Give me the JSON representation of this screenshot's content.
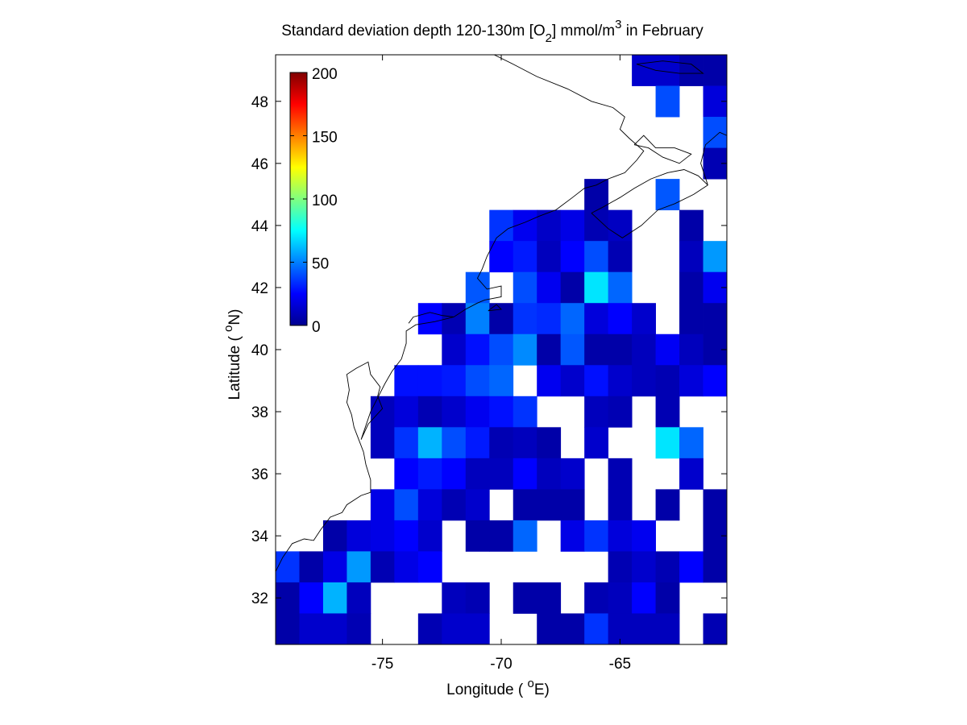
{
  "chart_data": {
    "type": "heatmap",
    "title": {
      "pre": "Standard deviation depth 120-130m [O",
      "sub": "2",
      "mid": "] mmol/m",
      "sup": "3",
      "post": " in February"
    },
    "xlabel": {
      "pre": "Longitude ( ",
      "sup": "o",
      "post": "E)"
    },
    "ylabel": {
      "pre": "Latitude ( ",
      "sup": "o",
      "post": "N)"
    },
    "xlim": [
      -79.5,
      -60.5
    ],
    "ylim": [
      30.5,
      49.5
    ],
    "xticks": [
      -75,
      -70,
      -65
    ],
    "xtick_labels": [
      "-75",
      "-70",
      "-65"
    ],
    "yticks": [
      32,
      34,
      36,
      38,
      40,
      42,
      44,
      46,
      48
    ],
    "ytick_labels": [
      "32",
      "34",
      "36",
      "38",
      "40",
      "42",
      "44",
      "46",
      "48"
    ],
    "grid": false,
    "colormap": "jet",
    "clim": [
      0,
      200
    ],
    "colorbar_ticks": [
      0,
      50,
      100,
      150,
      200
    ],
    "colorbar_tick_labels": [
      "0",
      "50",
      "100",
      "150",
      "200"
    ],
    "colorbar_location": "top-left inside",
    "coastline_color": "#000000",
    "cell_size_deg": 1,
    "x_centers": [
      -79,
      -78,
      -77,
      -76,
      -75,
      -74,
      -73,
      -72,
      -71,
      -70,
      -69,
      -68,
      -67,
      -66,
      -65,
      -64,
      -63,
      -62,
      -61
    ],
    "y_centers": [
      49,
      48,
      47,
      46,
      45,
      44,
      43,
      42,
      41,
      40,
      39,
      38,
      37,
      36,
      35,
      34,
      33,
      32,
      31
    ],
    "grid_values_rows_north_to_south": [
      [
        null,
        null,
        null,
        null,
        null,
        null,
        null,
        null,
        null,
        null,
        null,
        null,
        null,
        null,
        null,
        15,
        15,
        8,
        8
      ],
      [
        null,
        null,
        null,
        null,
        null,
        null,
        null,
        null,
        null,
        null,
        null,
        null,
        null,
        null,
        null,
        null,
        40,
        null,
        18
      ],
      [
        null,
        null,
        null,
        null,
        null,
        null,
        null,
        null,
        null,
        null,
        null,
        null,
        null,
        null,
        null,
        null,
        null,
        null,
        40
      ],
      [
        null,
        null,
        null,
        null,
        null,
        null,
        null,
        null,
        null,
        null,
        null,
        null,
        null,
        null,
        null,
        null,
        null,
        null,
        10
      ],
      [
        null,
        null,
        null,
        null,
        null,
        null,
        null,
        null,
        null,
        null,
        null,
        null,
        null,
        8,
        null,
        null,
        42,
        null,
        null
      ],
      [
        null,
        null,
        null,
        null,
        null,
        null,
        null,
        null,
        null,
        35,
        22,
        14,
        20,
        10,
        13,
        null,
        null,
        8,
        null
      ],
      [
        null,
        null,
        null,
        null,
        null,
        null,
        null,
        null,
        null,
        25,
        30,
        12,
        25,
        40,
        10,
        null,
        null,
        12,
        55
      ],
      [
        null,
        null,
        null,
        null,
        null,
        null,
        null,
        null,
        42,
        null,
        40,
        22,
        8,
        70,
        45,
        null,
        null,
        8,
        22
      ],
      [
        null,
        null,
        null,
        null,
        null,
        null,
        25,
        10,
        50,
        8,
        35,
        33,
        45,
        18,
        25,
        15,
        null,
        8,
        8
      ],
      [
        null,
        null,
        null,
        null,
        null,
        null,
        null,
        15,
        28,
        40,
        52,
        8,
        42,
        8,
        8,
        12,
        23,
        12,
        8
      ],
      [
        null,
        null,
        null,
        null,
        null,
        28,
        28,
        30,
        40,
        45,
        null,
        22,
        15,
        28,
        15,
        12,
        10,
        18,
        25
      ],
      [
        null,
        null,
        null,
        null,
        12,
        18,
        10,
        15,
        22,
        28,
        35,
        null,
        null,
        12,
        10,
        null,
        10,
        null,
        null
      ],
      [
        null,
        null,
        null,
        null,
        12,
        35,
        60,
        40,
        30,
        10,
        12,
        8,
        null,
        15,
        null,
        null,
        70,
        45,
        null
      ],
      [
        null,
        null,
        null,
        null,
        null,
        25,
        30,
        25,
        12,
        12,
        25,
        12,
        15,
        null,
        10,
        null,
        null,
        15,
        null
      ],
      [
        null,
        null,
        null,
        null,
        20,
        40,
        18,
        10,
        15,
        null,
        8,
        8,
        8,
        null,
        10,
        null,
        8,
        null,
        8
      ],
      [
        null,
        null,
        8,
        18,
        20,
        25,
        15,
        null,
        8,
        8,
        45,
        null,
        20,
        35,
        18,
        22,
        null,
        null,
        8
      ],
      [
        35,
        8,
        20,
        55,
        10,
        20,
        25,
        null,
        null,
        null,
        null,
        null,
        null,
        null,
        10,
        15,
        10,
        25,
        8
      ],
      [
        8,
        25,
        60,
        12,
        null,
        null,
        null,
        12,
        10,
        null,
        8,
        8,
        null,
        10,
        12,
        25,
        8,
        null,
        null
      ],
      [
        8,
        15,
        15,
        10,
        null,
        null,
        10,
        15,
        15,
        null,
        null,
        8,
        8,
        35,
        12,
        12,
        12,
        null,
        10
      ]
    ],
    "coastline_lonlat": [
      [
        [
          -79.5,
          32.85
        ],
        [
          -79.2,
          33.3
        ],
        [
          -78.8,
          33.75
        ],
        [
          -78.3,
          33.9
        ],
        [
          -77.9,
          33.85
        ],
        [
          -77.6,
          34.2
        ],
        [
          -77.2,
          34.6
        ],
        [
          -76.7,
          34.75
        ],
        [
          -76.5,
          35.0
        ],
        [
          -75.9,
          35.3
        ],
        [
          -75.5,
          35.4
        ],
        [
          -75.5,
          35.8
        ],
        [
          -75.7,
          36.3
        ],
        [
          -75.8,
          36.7
        ],
        [
          -76.0,
          37.1
        ],
        [
          -76.2,
          37.5
        ],
        [
          -76.3,
          37.9
        ],
        [
          -76.5,
          38.3
        ],
        [
          -76.4,
          38.7
        ],
        [
          -76.5,
          39.2
        ],
        [
          -76.1,
          39.4
        ],
        [
          -75.6,
          39.6
        ],
        [
          -75.5,
          39.2
        ],
        [
          -75.1,
          38.8
        ],
        [
          -75.2,
          38.5
        ],
        [
          -75.0,
          38.1
        ],
        [
          -75.6,
          37.6
        ],
        [
          -75.9,
          37.1
        ],
        [
          -75.5,
          38.0
        ],
        [
          -75.1,
          38.6
        ],
        [
          -74.9,
          38.9
        ],
        [
          -74.6,
          39.3
        ],
        [
          -74.2,
          39.7
        ],
        [
          -74.0,
          40.2
        ],
        [
          -74.0,
          40.6
        ],
        [
          -73.6,
          40.8
        ],
        [
          -72.8,
          40.9
        ],
        [
          -72.0,
          41.05
        ],
        [
          -71.5,
          41.3
        ],
        [
          -71.0,
          41.5
        ],
        [
          -70.7,
          41.6
        ],
        [
          -70.0,
          41.7
        ],
        [
          -70.0,
          42.05
        ],
        [
          -70.6,
          41.95
        ],
        [
          -71.0,
          42.3
        ],
        [
          -70.8,
          42.6
        ],
        [
          -70.6,
          43.0
        ],
        [
          -70.2,
          43.6
        ],
        [
          -69.7,
          43.9
        ],
        [
          -69.0,
          44.1
        ],
        [
          -68.4,
          44.3
        ],
        [
          -67.7,
          44.5
        ],
        [
          -67.0,
          44.9
        ],
        [
          -66.5,
          45.2
        ],
        [
          -66.0,
          45.3
        ],
        [
          -65.5,
          45.5
        ],
        [
          -64.8,
          45.7
        ],
        [
          -64.3,
          46.1
        ],
        [
          -64.0,
          46.4
        ],
        [
          -64.6,
          46.8
        ],
        [
          -65.0,
          47.1
        ],
        [
          -64.8,
          47.5
        ],
        [
          -65.3,
          47.8
        ],
        [
          -66.2,
          48.0
        ],
        [
          -67.2,
          48.4
        ],
        [
          -68.5,
          48.8
        ],
        [
          -69.5,
          49.2
        ],
        [
          -70.3,
          49.5
        ]
      ],
      [
        [
          -66.2,
          44.4
        ],
        [
          -65.7,
          44.6
        ],
        [
          -65.0,
          44.9
        ],
        [
          -64.4,
          45.2
        ],
        [
          -63.7,
          45.5
        ],
        [
          -63.0,
          45.7
        ],
        [
          -62.3,
          45.8
        ],
        [
          -61.7,
          45.6
        ],
        [
          -61.3,
          45.3
        ],
        [
          -61.6,
          46.0
        ],
        [
          -61.4,
          46.6
        ],
        [
          -60.8,
          47.0
        ],
        [
          -60.5,
          46.9
        ]
      ],
      [
        [
          -66.2,
          44.4
        ],
        [
          -65.5,
          43.9
        ],
        [
          -64.9,
          43.6
        ],
        [
          -64.1,
          44.0
        ],
        [
          -63.4,
          44.5
        ],
        [
          -62.7,
          44.7
        ],
        [
          -61.9,
          45.0
        ],
        [
          -61.3,
          45.3
        ]
      ],
      [
        [
          -64.4,
          46.6
        ],
        [
          -63.8,
          46.5
        ],
        [
          -63.2,
          46.2
        ],
        [
          -62.5,
          46.0
        ],
        [
          -62.0,
          46.3
        ],
        [
          -62.7,
          46.5
        ],
        [
          -63.5,
          46.5
        ],
        [
          -64.0,
          46.9
        ],
        [
          -64.4,
          46.6
        ]
      ],
      [
        [
          -64.3,
          49.2
        ],
        [
          -63.2,
          49.3
        ],
        [
          -62.0,
          49.2
        ],
        [
          -61.5,
          48.9
        ],
        [
          -62.5,
          48.9
        ],
        [
          -63.5,
          49.0
        ],
        [
          -64.3,
          49.2
        ]
      ],
      [
        [
          -72.0,
          41.05
        ],
        [
          -72.5,
          41.1
        ],
        [
          -73.0,
          41.2
        ],
        [
          -73.7,
          41.05
        ],
        [
          -73.9,
          40.85
        ]
      ],
      [
        [
          -70.55,
          41.25
        ],
        [
          -70.0,
          41.3
        ],
        [
          -70.2,
          41.45
        ],
        [
          -70.55,
          41.25
        ]
      ]
    ]
  }
}
